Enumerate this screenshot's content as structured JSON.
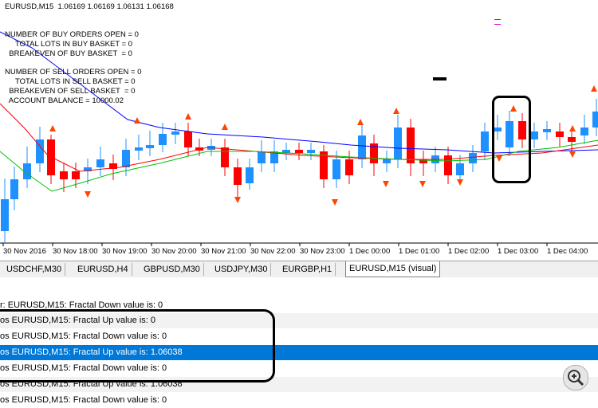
{
  "chart": {
    "title": "EURUSD,M15  1.06169 1.06169 1.06131 1.06168",
    "orders": [
      "NUMBER OF BUY ORDERS OPEN = 0",
      "     TOTAL LOTS IN BUY BASKET = 0",
      "  BREAKEVEN OF BUY BASKET  = 0",
      "",
      "NUMBER OF SELL ORDERS OPEN = 0",
      "     TOTAL LOTS IN SELL BASKET = 0",
      "  BREAKEVEN OF SELL BASKET  = 0",
      "  ACCOUNT BALANCE = 10000.02"
    ],
    "x_labels": [
      "30 Nov 2016",
      "30 Nov 18:00",
      "30 Nov 19:00",
      "30 Nov 20:00",
      "30 Nov 21:00",
      "30 Nov 22:00",
      "30 Nov 23:00",
      "1 Dec 00:00",
      "1 Dec 01:00",
      "1 Dec 02:00",
      "1 Dec 03:00",
      "1 Dec 04:00"
    ],
    "colors": {
      "bull": "#1e90ff",
      "bear": "#ff0000",
      "ma_fast": "#ff0000",
      "ma_slow": "#0000ff",
      "ma_mid": "#00c000",
      "fractal": "#ff4500"
    }
  },
  "tabs": [
    {
      "label": "USDCHF,M30"
    },
    {
      "label": "EURUSD,H4"
    },
    {
      "label": "GBPUSD,M30"
    },
    {
      "label": "USDJPY,M30"
    },
    {
      "label": "EURGBP,H1"
    },
    {
      "label": "EURUSD,M15 (visual)",
      "active": true
    }
  ],
  "log": [
    "r: EURUSD,M15: Fractal Down value is: 0",
    "os EURUSD,M15: Fractal Up value is: 0",
    "os EURUSD,M15: Fractal Down value is: 0",
    "os EURUSD,M15: Fractal Up value is: 1.06038",
    "os EURUSD,M15: Fractal Down value is: 0",
    "os EURUSD,M15: Fractal Up value is: 1.06038",
    "os EURUSD,M15: Fractal Down value is: 0"
  ],
  "icons": {
    "zoom": "zoom-in-icon"
  }
}
